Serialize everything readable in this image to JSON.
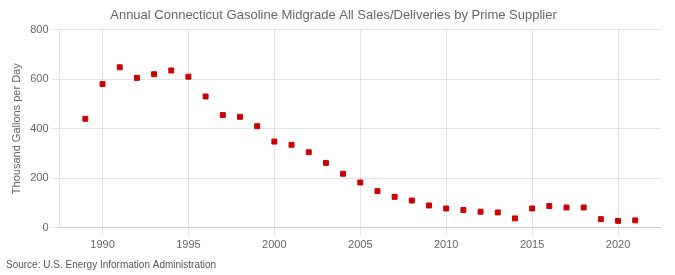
{
  "chart_data": {
    "type": "scatter",
    "title": "Annual Connecticut Gasoline Midgrade All Sales/Deliveries by Prime Supplier",
    "ylabel": "Thousand Gallons per Day",
    "annotation": "Source: U.S. Energy Information Administration",
    "x": [
      1989,
      1990,
      1991,
      1992,
      1993,
      1994,
      1995,
      1996,
      1997,
      1998,
      1999,
      2000,
      2001,
      2002,
      2003,
      2004,
      2005,
      2006,
      2007,
      2008,
      2009,
      2010,
      2011,
      2012,
      2013,
      2014,
      2015,
      2016,
      2017,
      2018,
      2019,
      2020,
      2021
    ],
    "values": [
      440,
      580,
      648,
      605,
      620,
      635,
      610,
      530,
      455,
      448,
      410,
      348,
      335,
      305,
      262,
      218,
      183,
      148,
      125,
      110,
      90,
      78,
      72,
      65,
      62,
      38,
      78,
      88,
      82,
      82,
      35,
      28,
      30
    ],
    "color": "#cc0000",
    "marker": "square",
    "xlim": [
      1987.5,
      2022.5
    ],
    "xticks": [
      1990,
      1995,
      2000,
      2005,
      2010,
      2015,
      2020
    ],
    "ylim": [
      0,
      800
    ],
    "yticks": [
      0,
      200,
      400,
      600,
      800
    ],
    "grid": true
  }
}
